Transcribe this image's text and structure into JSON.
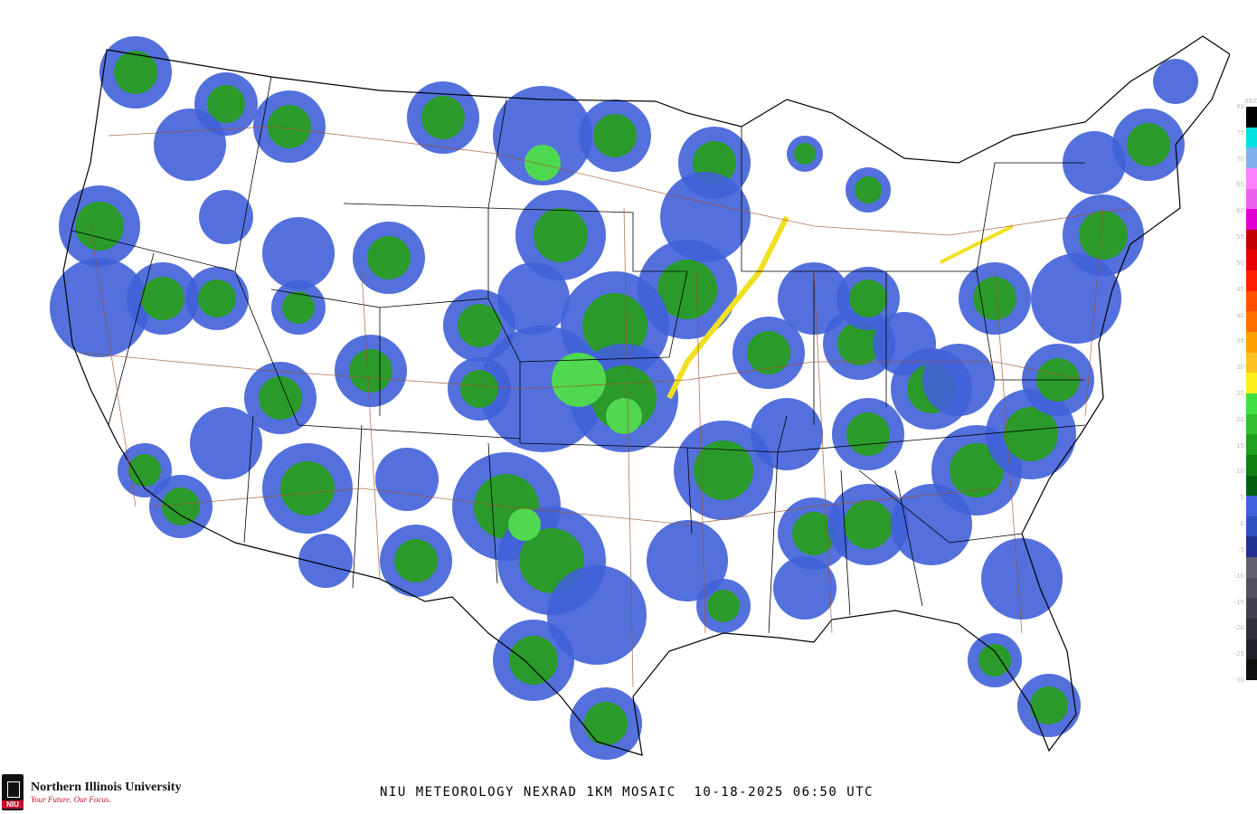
{
  "title": "NIU METEOROLOGY NEXRAD 1KM MOSAIC  10-18-2025 06:50 UTC",
  "logo": {
    "name": "Northern Illinois University",
    "tagline": "Your Future. Our Focus.",
    "seal_text": "NIU"
  },
  "colorbar": {
    "unit": "dBZ",
    "labels": [
      "80",
      "75",
      "70",
      "65",
      "60",
      "55",
      "50",
      "45",
      "40",
      "35",
      "30",
      "25",
      "20",
      "15",
      "10",
      "5",
      "0",
      "-5",
      "-10",
      "-15",
      "-20",
      "-25",
      "-30"
    ],
    "colors": [
      "#000000",
      "#00e0e0",
      "#80b0f0",
      "#ff80ff",
      "#f060f0",
      "#e000d0",
      "#c00000",
      "#e80000",
      "#ff2000",
      "#ff5000",
      "#ff7000",
      "#ffa000",
      "#ffc020",
      "#ffee20",
      "#40e040",
      "#30c030",
      "#20a020",
      "#108010",
      "#006010",
      "#4060e0",
      "#3050c0",
      "#203090",
      "#606070",
      "#505060",
      "#404050",
      "#303038",
      "#202028",
      "#101010"
    ]
  },
  "map": {
    "echo_colors": {
      "weak": "#4060d8",
      "light": "#2a9a2a",
      "moderate": "#50d850",
      "heavy": "#f0e020",
      "intense": "#ff4000"
    },
    "boundary_color": "#000000",
    "highway_color": "#a0522d"
  }
}
